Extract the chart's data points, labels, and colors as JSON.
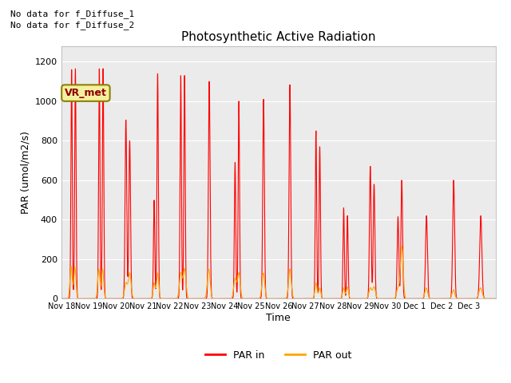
{
  "title": "Photosynthetic Active Radiation",
  "ylabel": "PAR (umol/m2/s)",
  "xlabel": "Time",
  "ylim": [
    0,
    1280
  ],
  "yticks": [
    0,
    200,
    400,
    600,
    800,
    1000,
    1200
  ],
  "background_color": "#ebebeb",
  "annotations": [
    "No data for f_Diffuse_1",
    "No data for f_Diffuse_2"
  ],
  "vr_met_label": "VR_met",
  "legend_entries": [
    "PAR in",
    "PAR out"
  ],
  "line_colors_in": "red",
  "line_colors_out": "orange",
  "tick_labels": [
    "Nov 18",
    "Nov 19",
    "Nov 20",
    "Nov 21",
    "Nov 22",
    "Nov 23",
    "Nov 24",
    "Nov 25",
    "Nov 26",
    "Nov 27",
    "Nov 28",
    "Nov 29",
    "Nov 30",
    "Dec 1",
    "Dec 2",
    "Dec 3"
  ],
  "day_patterns_in": [
    [
      [
        0.38,
        1160,
        0.025
      ],
      [
        0.52,
        1165,
        0.025
      ]
    ],
    [
      [
        0.4,
        1165,
        0.025
      ],
      [
        0.54,
        1165,
        0.025
      ]
    ],
    [
      [
        0.38,
        905,
        0.03
      ],
      [
        0.52,
        800,
        0.03
      ]
    ],
    [
      [
        0.42,
        500,
        0.025
      ],
      [
        0.55,
        1140,
        0.025
      ]
    ],
    [
      [
        0.4,
        1130,
        0.025
      ],
      [
        0.54,
        1130,
        0.025
      ]
    ],
    [
      [
        0.45,
        1100,
        0.03
      ]
    ],
    [
      [
        0.4,
        690,
        0.025
      ],
      [
        0.54,
        1000,
        0.025
      ]
    ],
    [
      [
        0.45,
        1010,
        0.03
      ]
    ],
    [
      [
        0.42,
        1085,
        0.03
      ]
    ],
    [
      [
        0.38,
        850,
        0.025
      ],
      [
        0.52,
        770,
        0.025
      ]
    ],
    [
      [
        0.4,
        460,
        0.025
      ],
      [
        0.54,
        420,
        0.025
      ]
    ],
    [
      [
        0.38,
        670,
        0.03
      ],
      [
        0.52,
        580,
        0.03
      ]
    ],
    [
      [
        0.4,
        415,
        0.03
      ],
      [
        0.54,
        600,
        0.03
      ]
    ],
    [
      [
        0.45,
        420,
        0.035
      ]
    ],
    [
      [
        0.45,
        600,
        0.035
      ]
    ],
    [
      [
        0.45,
        420,
        0.04
      ]
    ]
  ],
  "day_patterns_out": [
    [
      [
        0.36,
        165,
        0.04
      ],
      [
        0.5,
        160,
        0.04
      ]
    ],
    [
      [
        0.38,
        150,
        0.04
      ],
      [
        0.52,
        150,
        0.04
      ]
    ],
    [
      [
        0.38,
        80,
        0.05
      ],
      [
        0.52,
        130,
        0.05
      ]
    ],
    [
      [
        0.42,
        80,
        0.04
      ],
      [
        0.55,
        130,
        0.04
      ]
    ],
    [
      [
        0.4,
        130,
        0.05
      ],
      [
        0.54,
        150,
        0.05
      ]
    ],
    [
      [
        0.43,
        150,
        0.05
      ]
    ],
    [
      [
        0.4,
        100,
        0.05
      ],
      [
        0.54,
        130,
        0.05
      ]
    ],
    [
      [
        0.44,
        130,
        0.05
      ]
    ],
    [
      [
        0.42,
        150,
        0.05
      ]
    ],
    [
      [
        0.38,
        80,
        0.04
      ],
      [
        0.52,
        55,
        0.04
      ]
    ],
    [
      [
        0.4,
        55,
        0.04
      ],
      [
        0.54,
        60,
        0.04
      ]
    ],
    [
      [
        0.38,
        55,
        0.05
      ],
      [
        0.52,
        60,
        0.05
      ]
    ],
    [
      [
        0.4,
        55,
        0.05
      ],
      [
        0.54,
        265,
        0.05
      ]
    ],
    [
      [
        0.44,
        55,
        0.05
      ]
    ],
    [
      [
        0.44,
        45,
        0.05
      ]
    ],
    [
      [
        0.44,
        55,
        0.06
      ]
    ]
  ]
}
